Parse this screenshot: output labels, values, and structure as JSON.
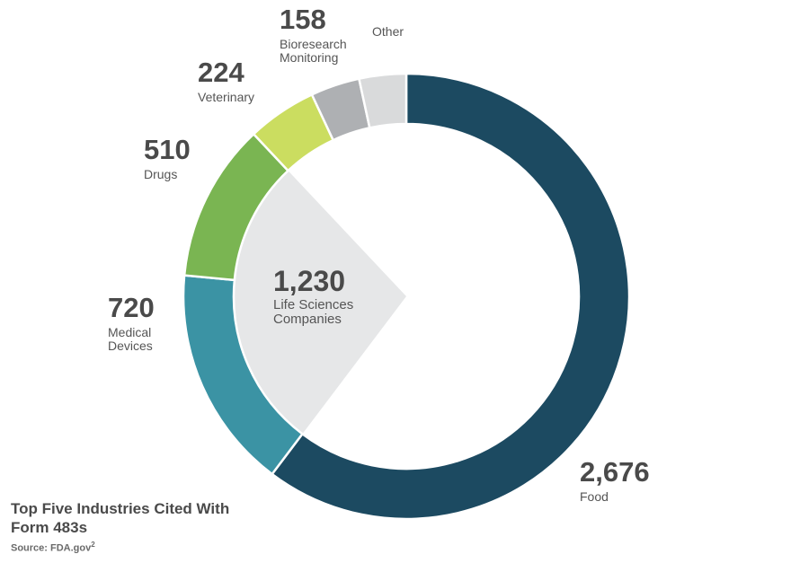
{
  "chart_data": {
    "type": "pie",
    "variant": "donut",
    "series": [
      {
        "label": "Food",
        "value": "2,676",
        "amount": 2676,
        "color": "#1c4a61"
      },
      {
        "label": "Medical Devices",
        "value": "720",
        "amount": 720,
        "color": "#3b93a4"
      },
      {
        "label": "Drugs",
        "value": "510",
        "amount": 510,
        "color": "#7ab552"
      },
      {
        "label": "Veterinary",
        "value": "224",
        "amount": 224,
        "color": "#cbdd60"
      },
      {
        "label": "Bioresearch Monitoring",
        "value": "158",
        "amount": 158,
        "color": "#aeb0b3"
      },
      {
        "label": "Other",
        "value": "",
        "amount": 151,
        "color": "#d9dadb"
      }
    ],
    "center_wedge": {
      "value": "1,230",
      "label": "Life Sciences Companies",
      "color": "#e6e7e8",
      "covers": [
        "Medical Devices",
        "Drugs"
      ]
    },
    "legend": "none",
    "grid": false
  },
  "caption": {
    "title": "Top Five Industries Cited With Form 483s",
    "source": "Source: FDA.gov",
    "source_note": "2"
  }
}
